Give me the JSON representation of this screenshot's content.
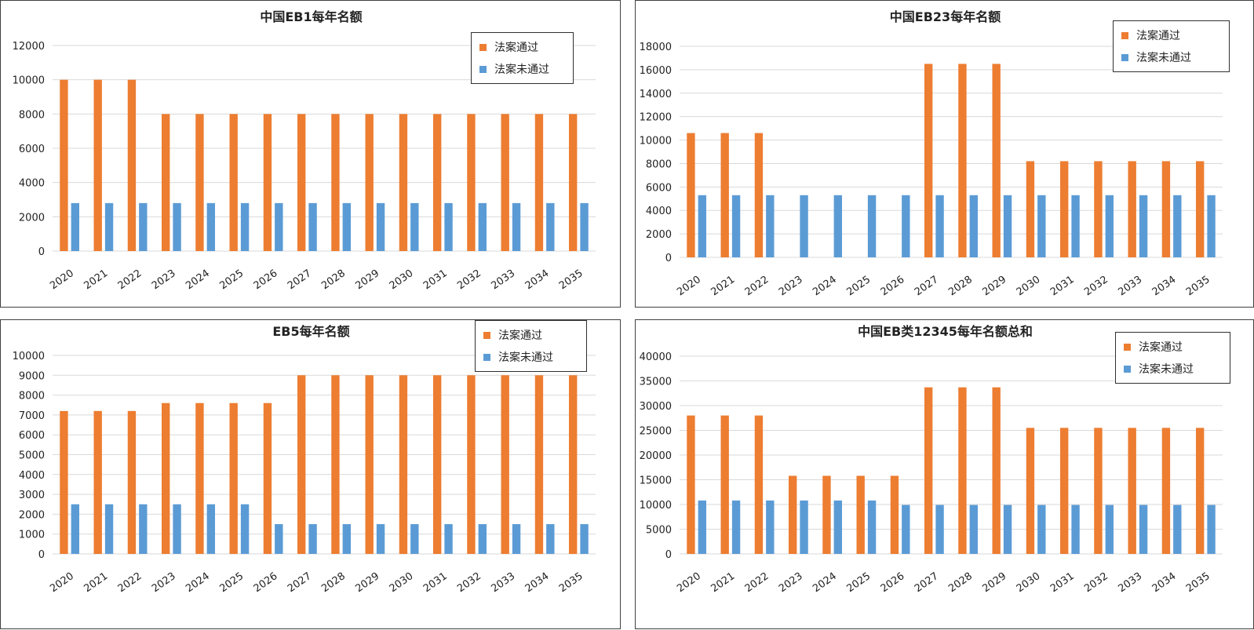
{
  "colors": {
    "passed": "#ED7D31",
    "not_passed": "#5B9BD5",
    "grid": "#D9D9D9",
    "axis_text": "#222222"
  },
  "chart_data": [
    {
      "type": "bar",
      "title": "中国EB1每年名额",
      "categories": [
        "2020",
        "2021",
        "2022",
        "2023",
        "2024",
        "2025",
        "2026",
        "2027",
        "2028",
        "2029",
        "2030",
        "2031",
        "2032",
        "2033",
        "2034",
        "2035"
      ],
      "series": [
        {
          "name": "法案通过",
          "values": [
            10000,
            10000,
            10000,
            8000,
            8000,
            8000,
            8000,
            8000,
            8000,
            8000,
            8000,
            8000,
            8000,
            8000,
            8000,
            8000
          ]
        },
        {
          "name": "法案未通过",
          "values": [
            2800,
            2800,
            2800,
            2800,
            2800,
            2800,
            2800,
            2800,
            2800,
            2800,
            2800,
            2800,
            2800,
            2800,
            2800,
            2800
          ]
        }
      ],
      "ylim": [
        0,
        12000
      ],
      "yticks": [
        0,
        2000,
        4000,
        6000,
        8000,
        10000,
        12000
      ],
      "grid": true,
      "legend": "top-right"
    },
    {
      "type": "bar",
      "title": "中国EB23每年名额",
      "categories": [
        "2020",
        "2021",
        "2022",
        "2023",
        "2024",
        "2025",
        "2026",
        "2027",
        "2028",
        "2029",
        "2030",
        "2031",
        "2032",
        "2033",
        "2034",
        "2035"
      ],
      "series": [
        {
          "name": "法案通过",
          "values": [
            10600,
            10600,
            10600,
            0,
            0,
            0,
            0,
            16500,
            16500,
            16500,
            8200,
            8200,
            8200,
            8200,
            8200,
            8200
          ]
        },
        {
          "name": "法案未通过",
          "values": [
            5300,
            5300,
            5300,
            5300,
            5300,
            5300,
            5300,
            5300,
            5300,
            5300,
            5300,
            5300,
            5300,
            5300,
            5300,
            5300
          ]
        }
      ],
      "ylim": [
        0,
        18000
      ],
      "yticks": [
        0,
        2000,
        4000,
        6000,
        8000,
        10000,
        12000,
        14000,
        16000,
        18000
      ],
      "grid": true,
      "legend": "top-right"
    },
    {
      "type": "bar",
      "title": "EB5每年名额",
      "categories": [
        "2020",
        "2021",
        "2022",
        "2023",
        "2024",
        "2025",
        "2026",
        "2027",
        "2028",
        "2029",
        "2030",
        "2031",
        "2032",
        "2033",
        "2034",
        "2035"
      ],
      "series": [
        {
          "name": "法案通过",
          "values": [
            7200,
            7200,
            7200,
            7600,
            7600,
            7600,
            7600,
            9000,
            9000,
            9000,
            9000,
            9000,
            9000,
            9000,
            9000,
            9000
          ]
        },
        {
          "name": "法案未通过",
          "values": [
            2500,
            2500,
            2500,
            2500,
            2500,
            2500,
            1500,
            1500,
            1500,
            1500,
            1500,
            1500,
            1500,
            1500,
            1500,
            1500
          ]
        }
      ],
      "ylim": [
        0,
        10000
      ],
      "yticks": [
        0,
        1000,
        2000,
        3000,
        4000,
        5000,
        6000,
        7000,
        8000,
        9000,
        10000
      ],
      "grid": true,
      "legend": "top-right"
    },
    {
      "type": "bar",
      "title": "中国EB类12345每年名额总和",
      "categories": [
        "2020",
        "2021",
        "2022",
        "2023",
        "2024",
        "2025",
        "2026",
        "2027",
        "2028",
        "2029",
        "2030",
        "2031",
        "2032",
        "2033",
        "2034",
        "2035"
      ],
      "series": [
        {
          "name": "法案通过",
          "values": [
            28000,
            28000,
            28000,
            15800,
            15800,
            15800,
            15800,
            33700,
            33700,
            33700,
            25500,
            25500,
            25500,
            25500,
            25500,
            25500
          ]
        },
        {
          "name": "法案未通过",
          "values": [
            10800,
            10800,
            10800,
            10800,
            10800,
            10800,
            9900,
            9900,
            9900,
            9900,
            9900,
            9900,
            9900,
            9900,
            9900,
            9900
          ]
        }
      ],
      "ylim": [
        0,
        40000
      ],
      "yticks": [
        0,
        5000,
        10000,
        15000,
        20000,
        25000,
        30000,
        35000,
        40000
      ],
      "grid": true,
      "legend": "top-right"
    }
  ]
}
